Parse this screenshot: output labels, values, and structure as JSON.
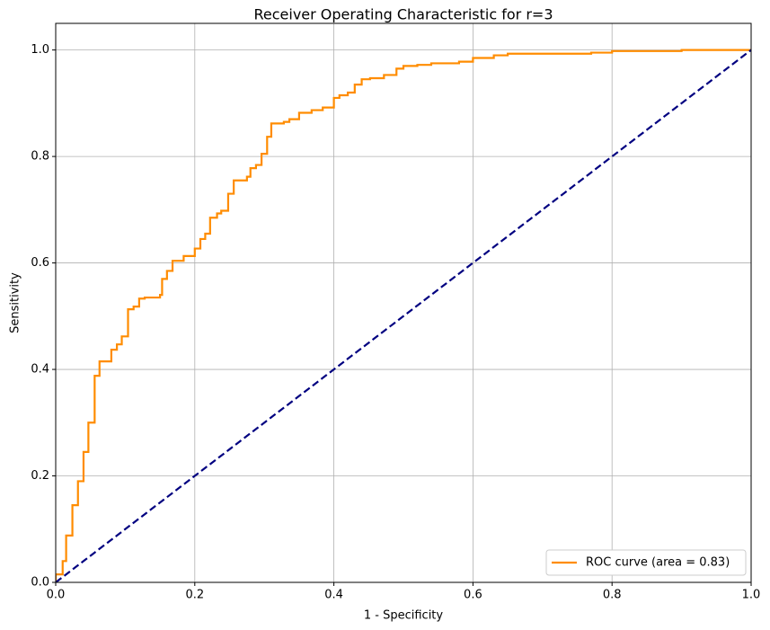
{
  "chart_data": {
    "type": "line",
    "title": "Receiver Operating Characteristic for r=3",
    "xlabel": "1 - Specificity",
    "ylabel": "Sensitivity",
    "xlim": [
      0,
      1
    ],
    "ylim": [
      0,
      1.05
    ],
    "xticks": [
      {
        "value": 0,
        "label": "0.0"
      },
      0.2,
      0.4,
      0.6,
      0.8,
      {
        "value": 1,
        "label": "1.0"
      }
    ],
    "yticks": [
      {
        "value": 0,
        "label": "0.0"
      },
      0.2,
      0.4,
      0.6,
      0.8,
      {
        "value": 1,
        "label": "1.0"
      }
    ],
    "grid": true,
    "legend": "lower right",
    "series": [
      {
        "name": "ROC curve (area = 0.83)",
        "color": "#ff8c00",
        "dashed": false,
        "x": [
          0,
          0,
          0.01,
          0.01,
          0.015,
          0.015,
          0.024,
          0.024,
          0.032,
          0.032,
          0.04,
          0.04,
          0.047,
          0.047,
          0.056,
          0.056,
          0.063,
          0.063,
          0.08,
          0.08,
          0.088,
          0.088,
          0.095,
          0.095,
          0.104,
          0.104,
          0.112,
          0.112,
          0.12,
          0.12,
          0.128,
          0.128,
          0.15,
          0.15,
          0.153,
          0.153,
          0.16,
          0.16,
          0.168,
          0.168,
          0.184,
          0.184,
          0.2,
          0.2,
          0.208,
          0.208,
          0.215,
          0.215,
          0.222,
          0.222,
          0.232,
          0.232,
          0.238,
          0.238,
          0.248,
          0.248,
          0.256,
          0.256,
          0.275,
          0.275,
          0.28,
          0.28,
          0.288,
          0.288,
          0.296,
          0.296,
          0.304,
          0.304,
          0.31,
          0.31,
          0.328,
          0.328,
          0.336,
          0.336,
          0.35,
          0.35,
          0.368,
          0.368,
          0.384,
          0.384,
          0.4,
          0.4,
          0.408,
          0.408,
          0.42,
          0.42,
          0.43,
          0.43,
          0.44,
          0.44,
          0.452,
          0.452,
          0.472,
          0.472,
          0.49,
          0.49,
          0.5,
          0.5,
          0.52,
          0.52,
          0.54,
          0.54,
          0.58,
          0.58,
          0.6,
          0.6,
          0.63,
          0.63,
          0.65,
          0.65,
          0.77,
          0.77,
          0.8,
          0.8,
          0.9,
          0.9,
          1
        ],
        "values": [
          0,
          0.015,
          0.015,
          0.04,
          0.04,
          0.088,
          0.088,
          0.145,
          0.145,
          0.19,
          0.19,
          0.245,
          0.245,
          0.3,
          0.3,
          0.388,
          0.388,
          0.415,
          0.415,
          0.437,
          0.437,
          0.447,
          0.447,
          0.462,
          0.462,
          0.513,
          0.513,
          0.518,
          0.518,
          0.533,
          0.533,
          0.535,
          0.535,
          0.54,
          0.54,
          0.57,
          0.57,
          0.585,
          0.585,
          0.604,
          0.604,
          0.613,
          0.613,
          0.627,
          0.627,
          0.645,
          0.645,
          0.655,
          0.655,
          0.685,
          0.685,
          0.693,
          0.693,
          0.698,
          0.698,
          0.73,
          0.73,
          0.755,
          0.755,
          0.762,
          0.762,
          0.778,
          0.778,
          0.784,
          0.784,
          0.805,
          0.805,
          0.837,
          0.837,
          0.862,
          0.862,
          0.865,
          0.865,
          0.87,
          0.87,
          0.882,
          0.882,
          0.887,
          0.887,
          0.892,
          0.892,
          0.91,
          0.91,
          0.915,
          0.915,
          0.92,
          0.92,
          0.935,
          0.935,
          0.945,
          0.945,
          0.947,
          0.947,
          0.953,
          0.953,
          0.965,
          0.965,
          0.97,
          0.97,
          0.972,
          0.972,
          0.975,
          0.975,
          0.978,
          0.978,
          0.985,
          0.985,
          0.99,
          0.99,
          0.993,
          0.993,
          0.995,
          0.995,
          0.998,
          0.998,
          1,
          1
        ]
      },
      {
        "color": "#000080",
        "dashed": true,
        "x": [
          0,
          1
        ],
        "values": [
          0,
          1
        ]
      }
    ]
  }
}
